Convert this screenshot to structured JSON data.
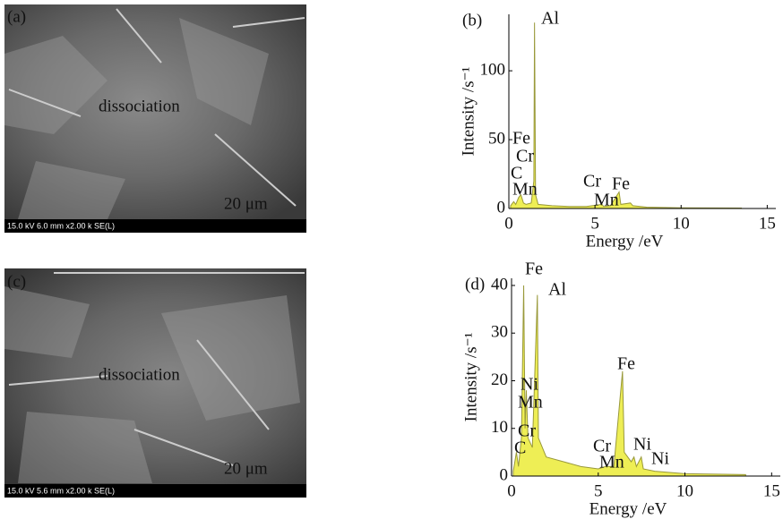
{
  "images": [
    {
      "label": "(a)",
      "annotation": "dissociation",
      "scale": "20 μm",
      "info": "15.0 kV 6.0 mm x2.00 k SE(L)"
    },
    {
      "label": "(c)",
      "annotation": "dissociation",
      "scale": "20 μm",
      "info": "15.0 kV 5.6 mm x2.00 k SE(L)"
    }
  ],
  "chart_data": [
    {
      "type": "area",
      "title": "(b)",
      "x_label": "Energy /eV",
      "y_label": "Intensity /s⁻¹",
      "color": "#eeee55",
      "xlim": [
        0,
        15.5
      ],
      "ylim": [
        0,
        141
      ],
      "xticks": [
        0,
        5,
        10,
        15
      ],
      "yticks": [
        0,
        50,
        100
      ],
      "x": [
        0.1,
        0.28,
        0.4,
        0.57,
        0.7,
        0.85,
        1.0,
        1.3,
        1.45,
        1.49,
        1.55,
        1.7,
        2.5,
        3.5,
        4.5,
        5.41,
        5.5,
        5.9,
        6.4,
        6.5,
        7.06,
        7.2,
        8,
        10,
        13.5
      ],
      "values": [
        2,
        5,
        3,
        8,
        10,
        4,
        3,
        4,
        20,
        135,
        10,
        3,
        2,
        1.5,
        1.5,
        3,
        1.5,
        2,
        12,
        3,
        4,
        2,
        1,
        0.5,
        0.3
      ],
      "annotations": [
        "Al",
        "Fe",
        "Cr",
        "C",
        "Mn",
        "Cr",
        "Fe",
        "Mn"
      ]
    },
    {
      "type": "area",
      "title": "(d)",
      "x_label": "Energy /eV",
      "y_label": "Intensity /s⁻¹",
      "color": "#eeee55",
      "xlim": [
        0,
        15.5
      ],
      "ylim": [
        0,
        41.5
      ],
      "xticks": [
        0,
        5,
        10,
        15
      ],
      "yticks": [
        0,
        10,
        20,
        30,
        40
      ],
      "x": [
        0.1,
        0.28,
        0.4,
        0.57,
        0.7,
        0.78,
        0.85,
        0.95,
        1.2,
        1.49,
        1.55,
        2,
        3,
        4,
        5,
        5.41,
        5.9,
        6.4,
        6.5,
        6.9,
        7.06,
        7.2,
        7.48,
        7.6,
        8.26,
        10,
        13.5
      ],
      "values": [
        1,
        5,
        2,
        8,
        40,
        10,
        18,
        8,
        6,
        38,
        8,
        4,
        3,
        2,
        1.5,
        2,
        2,
        22,
        5,
        3,
        4,
        2,
        4,
        1.5,
        1,
        0.5,
        0.3
      ],
      "annotations": [
        "Fe",
        "Al",
        "Fe",
        "Ni",
        "Mn",
        "Cr",
        "C",
        "Cr",
        "Ni",
        "Mn",
        "Ni"
      ]
    }
  ]
}
